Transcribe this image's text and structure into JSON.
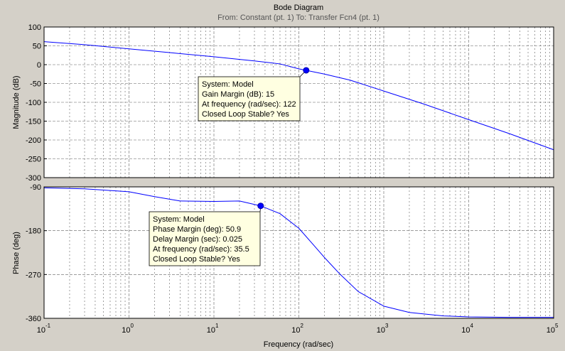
{
  "figure": {
    "title": "Bode Diagram",
    "subtitle": "From: Constant (pt. 1)  To: Transfer Fcn4 (pt. 1)",
    "xlabel": "Frequency  (rad/sec)"
  },
  "colors": {
    "background": "#d4d0c8",
    "axes_bg": "#ffffff",
    "line": "#0000ff",
    "marker": "#0000ff",
    "datatip_bg": "#ffffe1",
    "grid": "#606060"
  },
  "chart_data": [
    {
      "type": "line",
      "name": "magnitude",
      "ylabel": "Magnitude (dB)",
      "x_scale": "log",
      "xlim": [
        0.1,
        100000
      ],
      "ylim": [
        -300,
        100
      ],
      "yticks": [
        100,
        50,
        0,
        -50,
        -100,
        -150,
        -200,
        -250,
        -300
      ],
      "grid": true,
      "x": [
        0.1,
        0.3,
        1,
        3,
        10,
        30,
        60,
        100,
        122,
        200,
        400,
        1000,
        3000,
        10000,
        30000,
        100000
      ],
      "y": [
        61,
        53,
        42,
        32,
        21,
        10,
        2,
        -11,
        -15,
        -25,
        -41,
        -70,
        -105,
        -146,
        -183,
        -226
      ],
      "datatip": {
        "x": 122,
        "y": -15,
        "lines": [
          "System: Model",
          "Gain Margin (dB): 15",
          "At frequency (rad/sec): 122",
          "Closed Loop Stable? Yes"
        ]
      }
    },
    {
      "type": "line",
      "name": "phase",
      "ylabel": "Phase (deg)",
      "x_scale": "log",
      "xlim": [
        0.1,
        100000
      ],
      "ylim": [
        -360,
        -90
      ],
      "yticks": [
        -90,
        -180,
        -270,
        -360
      ],
      "grid": true,
      "x": [
        0.1,
        0.3,
        1,
        2,
        4,
        10,
        20,
        35.5,
        60,
        100,
        150,
        200,
        300,
        500,
        1000,
        2000,
        5000,
        10000,
        30000,
        100000
      ],
      "y": [
        -92,
        -94,
        -100,
        -110,
        -119,
        -120,
        -119,
        -129,
        -145,
        -175,
        -210,
        -235,
        -268,
        -305,
        -335,
        -348,
        -355,
        -357,
        -358,
        -358
      ],
      "datatip": {
        "x": 35.5,
        "y": -129,
        "lines": [
          "System: Model",
          "Phase Margin (deg): 50.9",
          "Delay Margin (sec): 0.025",
          "At frequency (rad/sec): 35.5",
          "Closed Loop Stable? Yes"
        ]
      }
    }
  ],
  "xticks": {
    "values": [
      0.1,
      1,
      10,
      100,
      1000,
      10000,
      100000
    ],
    "bases": [
      "10",
      "10",
      "10",
      "10",
      "10",
      "10",
      "10"
    ],
    "exponents": [
      "-1",
      "0",
      "1",
      "2",
      "3",
      "4",
      "5"
    ]
  }
}
